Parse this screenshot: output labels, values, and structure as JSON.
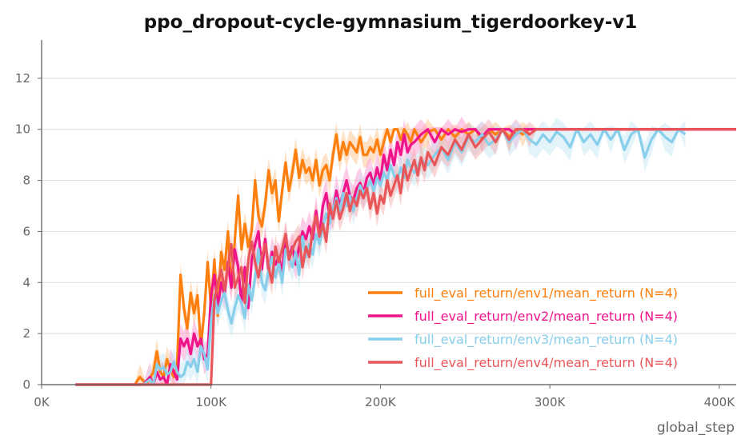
{
  "chart_data": {
    "type": "line",
    "title": "ppo_dropout-cycle-gymnasium_tigerdoorkey-v1",
    "xlabel": "global_step",
    "ylabel": "",
    "xlim": [
      0,
      410000
    ],
    "ylim": [
      0,
      13.5
    ],
    "grid": "horizontal",
    "legend_position": "bottom-right",
    "x_ticks": [
      {
        "value": 0,
        "label": "0K"
      },
      {
        "value": 100000,
        "label": "100K"
      },
      {
        "value": 200000,
        "label": "200K"
      },
      {
        "value": 300000,
        "label": "300K"
      },
      {
        "value": 400000,
        "label": "400K"
      }
    ],
    "y_ticks": [
      {
        "value": 0,
        "label": "0"
      },
      {
        "value": 2,
        "label": "2"
      },
      {
        "value": 4,
        "label": "4"
      },
      {
        "value": 6,
        "label": "6"
      },
      {
        "value": 8,
        "label": "8"
      },
      {
        "value": 10,
        "label": "10"
      },
      {
        "value": 12,
        "label": "12"
      }
    ],
    "series": [
      {
        "name": "full_eval_return/env1/mean_return (N=4)",
        "color": "#ff7f0e",
        "band_color": "#ffbf80",
        "band": 0.5,
        "x": [
          20000,
          40000,
          55000,
          58000,
          62000,
          66000,
          68000,
          70000,
          72000,
          74000,
          76000,
          78000,
          80000,
          82000,
          84000,
          86000,
          88000,
          90000,
          92000,
          94000,
          96000,
          98000,
          100000,
          102000,
          104000,
          106000,
          108000,
          110000,
          112000,
          114000,
          116000,
          118000,
          120000,
          122000,
          124000,
          126000,
          128000,
          130000,
          132000,
          134000,
          136000,
          138000,
          140000,
          142000,
          144000,
          146000,
          148000,
          150000,
          152000,
          154000,
          156000,
          158000,
          160000,
          162000,
          164000,
          166000,
          168000,
          170000,
          172000,
          174000,
          176000,
          178000,
          180000,
          182000,
          184000,
          186000,
          188000,
          190000,
          192000,
          194000,
          196000,
          198000,
          200000,
          202000,
          204000,
          206000,
          208000,
          210000,
          212000,
          214000,
          216000,
          218000,
          220000,
          224000,
          228000,
          232000,
          236000,
          240000,
          244000,
          248000,
          252000,
          256000,
          260000,
          264000,
          268000,
          272000,
          276000,
          280000,
          284000,
          288000,
          292000,
          296000,
          300000,
          410000
        ],
        "y": [
          0,
          0,
          0,
          0.3,
          0,
          0.5,
          1.3,
          0.5,
          0.3,
          1.0,
          0.6,
          0.3,
          0.8,
          4.3,
          3.0,
          2.2,
          3.6,
          2.8,
          3.5,
          1.5,
          2.8,
          4.8,
          3.0,
          4.9,
          2.7,
          5.2,
          4.5,
          6.0,
          3.8,
          5.6,
          7.4,
          5.3,
          6.3,
          5.4,
          6.0,
          8.0,
          6.6,
          6.2,
          7.1,
          8.4,
          7.5,
          8.0,
          6.4,
          7.6,
          8.7,
          7.6,
          8.3,
          9.2,
          8.1,
          8.8,
          8.3,
          8.5,
          8.0,
          8.8,
          7.8,
          8.4,
          8.6,
          8.0,
          9.0,
          9.8,
          8.8,
          9.5,
          9.0,
          9.5,
          9.3,
          9.1,
          9.7,
          9.0,
          9.0,
          9.3,
          9.1,
          9.6,
          9.0,
          9.5,
          10.0,
          9.5,
          10.0,
          10.0,
          9.6,
          10.0,
          9.8,
          9.5,
          10.0,
          9.5,
          9.9,
          10.0,
          9.6,
          10.0,
          9.7,
          10.0,
          9.8,
          10.0,
          9.6,
          10.0,
          9.8,
          10.0,
          9.7,
          10.0,
          9.8,
          10.0,
          10.0,
          10.0,
          10.0,
          10.0
        ]
      },
      {
        "name": "full_eval_return/env2/mean_return (N=4)",
        "color": "#f0138a",
        "band_color": "#ff8fcc",
        "band": 0.6,
        "x": [
          20000,
          40000,
          55000,
          60000,
          64000,
          66000,
          68000,
          70000,
          72000,
          74000,
          76000,
          78000,
          80000,
          82000,
          84000,
          86000,
          88000,
          90000,
          92000,
          94000,
          96000,
          98000,
          100000,
          102000,
          104000,
          106000,
          108000,
          110000,
          112000,
          114000,
          116000,
          118000,
          120000,
          122000,
          124000,
          126000,
          128000,
          130000,
          132000,
          134000,
          136000,
          138000,
          140000,
          142000,
          144000,
          146000,
          148000,
          150000,
          152000,
          154000,
          156000,
          158000,
          160000,
          162000,
          164000,
          166000,
          168000,
          170000,
          172000,
          174000,
          176000,
          178000,
          180000,
          182000,
          184000,
          186000,
          188000,
          190000,
          192000,
          194000,
          196000,
          198000,
          200000,
          202000,
          204000,
          206000,
          208000,
          210000,
          212000,
          214000,
          216000,
          218000,
          220000,
          224000,
          228000,
          232000,
          236000,
          240000,
          244000,
          248000,
          252000,
          256000,
          260000,
          264000,
          268000,
          272000,
          276000,
          280000,
          284000,
          288000,
          292000,
          296000,
          410000
        ],
        "y": [
          0,
          0,
          0,
          0,
          0.3,
          0,
          0.5,
          0.2,
          0.3,
          0.0,
          0.8,
          0.5,
          0.2,
          1.8,
          1.5,
          1.8,
          1.2,
          2.0,
          1.5,
          1.8,
          1.0,
          1.2,
          3.5,
          4.3,
          3.0,
          4.0,
          3.5,
          4.8,
          3.8,
          5.3,
          4.6,
          3.2,
          4.6,
          3.0,
          4.9,
          5.5,
          6.0,
          4.5,
          5.7,
          4.4,
          5.2,
          4.7,
          5.0,
          4.4,
          5.8,
          5.0,
          5.4,
          4.7,
          5.4,
          6.0,
          5.7,
          6.2,
          5.7,
          6.8,
          5.8,
          7.0,
          7.5,
          6.6,
          6.8,
          7.6,
          7.0,
          7.5,
          8.0,
          7.4,
          7.2,
          7.7,
          7.9,
          7.5,
          8.1,
          8.3,
          7.8,
          8.5,
          8.0,
          9.0,
          8.4,
          9.2,
          8.6,
          9.5,
          9.0,
          9.8,
          9.1,
          9.4,
          9.5,
          9.8,
          10.0,
          9.5,
          10.0,
          9.8,
          10.0,
          9.9,
          10.0,
          10.0,
          9.7,
          10.0,
          10.0,
          10.0,
          10.0,
          9.8,
          10.0,
          10.0,
          10.0,
          10.0,
          10.0
        ]
      },
      {
        "name": "full_eval_return/env3/mean_return (N=4)",
        "color": "#87ceeb",
        "band_color": "#bfe5f5",
        "band": 0.55,
        "x": [
          20000,
          40000,
          55000,
          60000,
          64000,
          66000,
          68000,
          70000,
          72000,
          74000,
          76000,
          78000,
          80000,
          82000,
          84000,
          86000,
          88000,
          90000,
          92000,
          94000,
          96000,
          98000,
          100000,
          102000,
          104000,
          106000,
          108000,
          110000,
          112000,
          114000,
          116000,
          118000,
          120000,
          122000,
          124000,
          126000,
          128000,
          130000,
          132000,
          134000,
          136000,
          138000,
          140000,
          142000,
          144000,
          146000,
          148000,
          150000,
          152000,
          154000,
          156000,
          158000,
          160000,
          162000,
          164000,
          166000,
          168000,
          170000,
          172000,
          174000,
          176000,
          178000,
          180000,
          182000,
          184000,
          186000,
          188000,
          190000,
          192000,
          194000,
          196000,
          198000,
          200000,
          202000,
          204000,
          206000,
          208000,
          210000,
          212000,
          214000,
          216000,
          218000,
          220000,
          224000,
          228000,
          232000,
          236000,
          240000,
          244000,
          248000,
          252000,
          256000,
          260000,
          264000,
          268000,
          272000,
          276000,
          280000,
          284000,
          288000,
          292000,
          296000,
          300000,
          304000,
          308000,
          312000,
          316000,
          320000,
          324000,
          328000,
          332000,
          336000,
          340000,
          344000,
          348000,
          352000,
          356000,
          360000,
          364000,
          368000,
          372000,
          376000,
          380000
        ],
        "y": [
          0,
          0,
          0,
          0,
          0.2,
          0,
          0.8,
          0.6,
          0.7,
          0.4,
          0.5,
          0.9,
          0.5,
          0.3,
          0.4,
          0.9,
          0.7,
          1.0,
          0.5,
          1.5,
          1.2,
          0.6,
          2.5,
          3.5,
          2.8,
          3.3,
          3.6,
          2.9,
          2.4,
          3.0,
          3.5,
          3.2,
          2.6,
          3.9,
          3.3,
          4.2,
          5.3,
          4.0,
          3.7,
          4.5,
          5.0,
          4.2,
          4.8,
          4.0,
          5.3,
          5.0,
          4.6,
          5.2,
          4.3,
          5.8,
          5.0,
          5.5,
          5.1,
          5.9,
          5.5,
          6.2,
          6.7,
          6.3,
          6.9,
          7.3,
          6.8,
          7.5,
          7.0,
          7.4,
          6.8,
          7.3,
          7.8,
          7.5,
          7.7,
          8.0,
          7.6,
          8.1,
          7.8,
          8.3,
          8.0,
          8.6,
          8.2,
          8.0,
          8.5,
          8.1,
          8.8,
          8.5,
          8.3,
          8.8,
          8.6,
          9.0,
          9.3,
          8.8,
          9.5,
          9.1,
          9.7,
          9.5,
          9.8,
          9.4,
          9.6,
          10.0,
          9.5,
          9.8,
          10.0,
          9.6,
          9.4,
          9.8,
          9.5,
          9.9,
          9.7,
          9.3,
          10.0,
          9.5,
          9.8,
          9.4,
          10.0,
          9.6,
          10.0,
          9.2,
          9.8,
          10.0,
          8.9,
          9.6,
          10.0,
          9.7,
          9.5,
          10.0,
          9.8
        ]
      },
      {
        "name": "full_eval_return/env4/mean_return (N=4)",
        "color": "#e8565a",
        "band_color": "#f5a6a6",
        "band": 0.5,
        "x": [
          20000,
          40000,
          60000,
          80000,
          92000,
          96000,
          98000,
          100000,
          102000,
          104000,
          106000,
          108000,
          110000,
          112000,
          114000,
          116000,
          118000,
          120000,
          122000,
          124000,
          126000,
          128000,
          130000,
          132000,
          134000,
          136000,
          138000,
          140000,
          142000,
          144000,
          146000,
          148000,
          150000,
          152000,
          154000,
          156000,
          158000,
          160000,
          162000,
          164000,
          166000,
          168000,
          170000,
          172000,
          174000,
          176000,
          178000,
          180000,
          182000,
          184000,
          186000,
          188000,
          190000,
          192000,
          194000,
          196000,
          198000,
          200000,
          202000,
          204000,
          206000,
          208000,
          210000,
          212000,
          214000,
          216000,
          218000,
          220000,
          222000,
          224000,
          226000,
          228000,
          232000,
          236000,
          240000,
          244000,
          248000,
          252000,
          256000,
          260000,
          264000,
          268000,
          272000,
          276000,
          280000,
          284000,
          288000,
          292000,
          296000,
          300000,
          410000
        ],
        "y": [
          0,
          0,
          0,
          0,
          0,
          0,
          0,
          0,
          3.3,
          4.0,
          4.5,
          3.7,
          4.6,
          5.5,
          3.8,
          4.2,
          4.6,
          3.2,
          4.9,
          5.6,
          4.8,
          4.2,
          5.0,
          5.5,
          4.6,
          4.0,
          5.4,
          4.8,
          5.3,
          5.9,
          4.9,
          5.3,
          5.6,
          5.8,
          4.6,
          5.4,
          5.0,
          6.1,
          6.6,
          5.8,
          6.3,
          5.6,
          7.1,
          6.5,
          7.2,
          6.5,
          6.9,
          7.5,
          6.8,
          7.3,
          7.0,
          7.6,
          7.3,
          7.7,
          6.9,
          7.5,
          6.7,
          7.4,
          7.1,
          8.0,
          7.4,
          7.8,
          8.2,
          7.5,
          8.6,
          8.0,
          8.4,
          8.8,
          8.2,
          8.9,
          8.4,
          9.1,
          8.6,
          9.3,
          9.0,
          9.6,
          9.2,
          9.8,
          9.3,
          9.6,
          9.9,
          9.5,
          10.0,
          9.6,
          10.0,
          10.0,
          9.8,
          10.0,
          10.0,
          10.0,
          10.0
        ]
      }
    ]
  }
}
